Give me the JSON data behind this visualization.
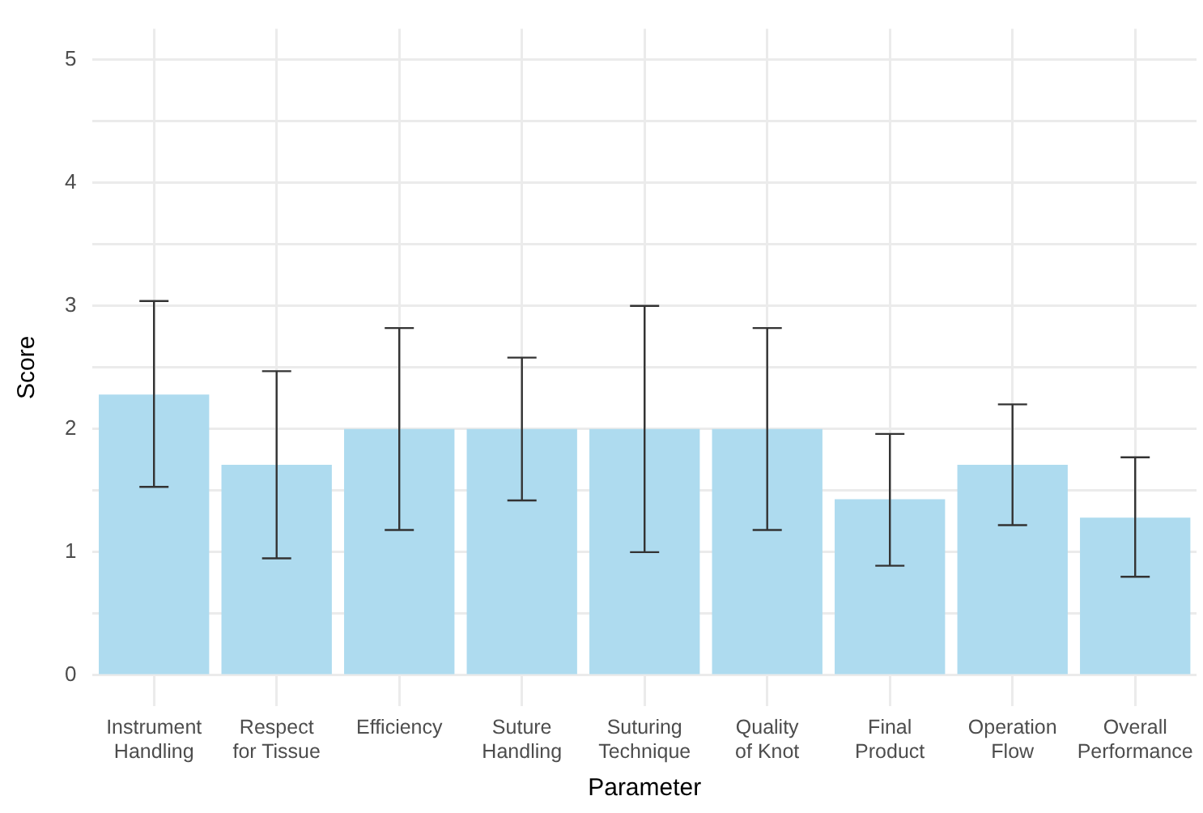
{
  "chart_data": {
    "type": "bar",
    "xlabel": "Parameter",
    "ylabel": "Score",
    "categories": [
      "Instrument\nHandling",
      "Respect\nfor Tissue",
      "Efficiency",
      "Suture\nHandling",
      "Suturing\nTechnique",
      "Quality\nof Knot",
      "Final\nProduct",
      "Operation\nFlow",
      "Overall\nPerformance"
    ],
    "values": [
      2.28,
      1.71,
      2,
      2,
      2,
      2,
      1.43,
      1.71,
      1.28
    ],
    "errors": [
      [
        1.53,
        3.04
      ],
      [
        0.95,
        2.47
      ],
      [
        1.18,
        2.82
      ],
      [
        1.42,
        2.58
      ],
      [
        1,
        3
      ],
      [
        1.18,
        2.82
      ],
      [
        0.89,
        1.96
      ],
      [
        1.22,
        2.2
      ],
      [
        0.8,
        1.77
      ]
    ],
    "color": "#aedbef",
    "ylim": [
      -0.25,
      5.25
    ],
    "yticks": [
      0,
      {
        "value": 0.5,
        "label": null
      },
      1,
      {
        "value": 1.5,
        "label": null
      },
      2,
      {
        "value": 2.5,
        "label": null
      },
      3,
      {
        "value": 3.5,
        "label": null
      },
      4,
      {
        "value": 4.5,
        "label": null
      },
      5
    ],
    "grid": true,
    "legend": false
  }
}
